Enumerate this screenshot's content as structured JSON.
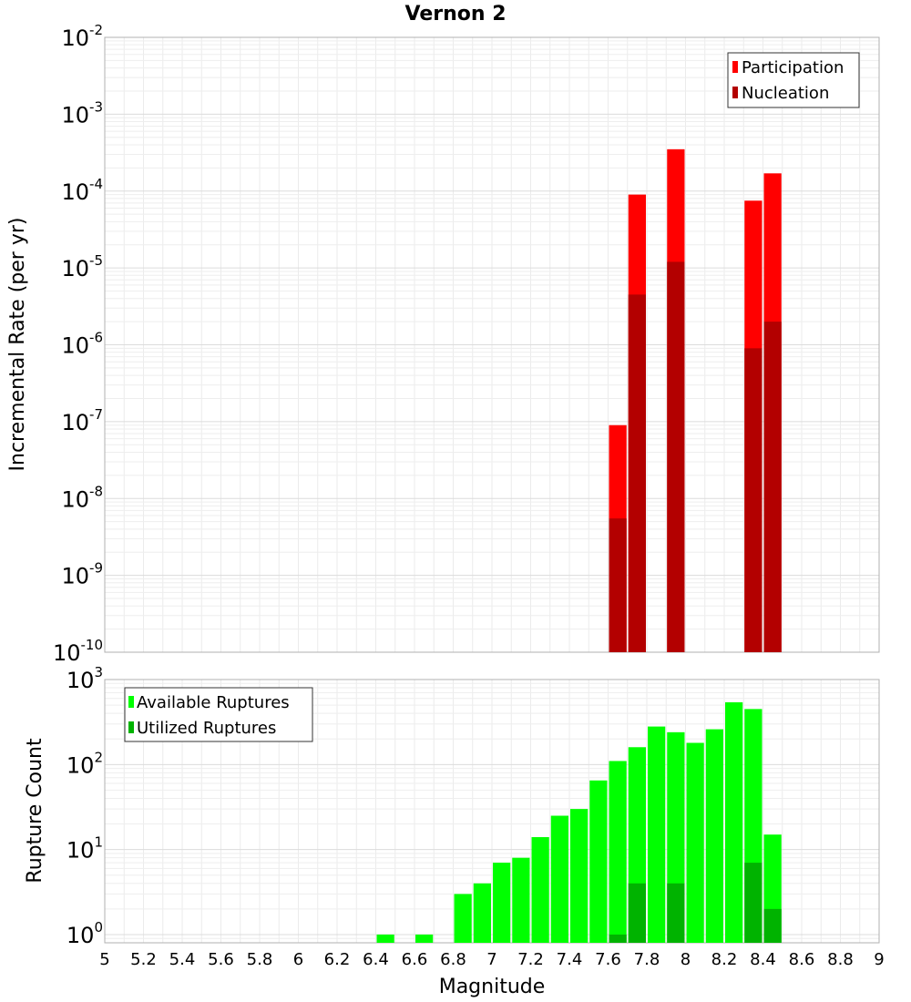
{
  "figure_title": "Vernon 2",
  "chart_data": [
    {
      "type": "bar",
      "scale": "log",
      "ylabel": "Incremental Rate (per yr)",
      "xlim": [
        5,
        9
      ],
      "ylim": [
        1e-10,
        0.01
      ],
      "yticks": [
        {
          "base": "10",
          "exp": "-10",
          "value": 1e-10
        },
        {
          "base": "10",
          "exp": "-9",
          "value": 1e-09
        },
        {
          "base": "10",
          "exp": "-8",
          "value": 1e-08
        },
        {
          "base": "10",
          "exp": "-7",
          "value": 1e-07
        },
        {
          "base": "10",
          "exp": "-6",
          "value": 1e-06
        },
        {
          "base": "10",
          "exp": "-5",
          "value": 1e-05
        },
        {
          "base": "10",
          "exp": "-4",
          "value": 0.0001
        },
        {
          "base": "10",
          "exp": "-3",
          "value": 0.001
        },
        {
          "base": "10",
          "exp": "-2",
          "value": 0.01
        }
      ],
      "legend": {
        "position": "top-right",
        "entries": [
          "Participation",
          "Nucleation"
        ]
      },
      "series": [
        {
          "name": "Participation",
          "color": "#ff0000",
          "x": [
            7.65,
            7.75,
            7.95,
            8.35,
            8.45
          ],
          "values": [
            9e-08,
            9e-05,
            0.00035,
            7.5e-05,
            0.00017
          ]
        },
        {
          "name": "Nucleation",
          "color": "#b30000",
          "x": [
            7.65,
            7.75,
            7.95,
            8.35,
            8.45
          ],
          "values": [
            5.5e-09,
            4.5e-06,
            1.2e-05,
            9e-07,
            2e-06
          ]
        }
      ]
    },
    {
      "type": "bar",
      "scale": "log",
      "ylabel": "Rupture Count",
      "xlabel": "Magnitude",
      "xlim": [
        5,
        9
      ],
      "ylim": [
        0.8,
        1000
      ],
      "yticks": [
        {
          "base": "10",
          "exp": "0",
          "value": 1
        },
        {
          "base": "10",
          "exp": "1",
          "value": 10
        },
        {
          "base": "10",
          "exp": "2",
          "value": 100
        },
        {
          "base": "10",
          "exp": "3",
          "value": 1000
        }
      ],
      "xticks": [
        "5",
        "5.2",
        "5.4",
        "5.6",
        "5.8",
        "6",
        "6.2",
        "6.4",
        "6.6",
        "6.8",
        "7",
        "7.2",
        "7.4",
        "7.6",
        "7.8",
        "8",
        "8.2",
        "8.4",
        "8.6",
        "8.8",
        "9"
      ],
      "legend": {
        "position": "top-left",
        "entries": [
          "Available Ruptures",
          "Utilized Ruptures"
        ]
      },
      "series": [
        {
          "name": "Available Ruptures",
          "color": "#00ff00",
          "x": [
            6.45,
            6.65,
            6.85,
            6.95,
            7.05,
            7.15,
            7.25,
            7.35,
            7.45,
            7.55,
            7.65,
            7.75,
            7.85,
            7.95,
            8.05,
            8.15,
            8.25,
            8.35,
            8.45
          ],
          "values": [
            1,
            1,
            3,
            4,
            7,
            8,
            14,
            25,
            30,
            65,
            110,
            160,
            280,
            240,
            180,
            260,
            540,
            450,
            15
          ]
        },
        {
          "name": "Utilized Ruptures",
          "color": "#00b300",
          "x": [
            7.65,
            7.75,
            7.95,
            8.35,
            8.45
          ],
          "values": [
            1,
            4,
            4,
            7,
            2
          ]
        }
      ]
    }
  ]
}
